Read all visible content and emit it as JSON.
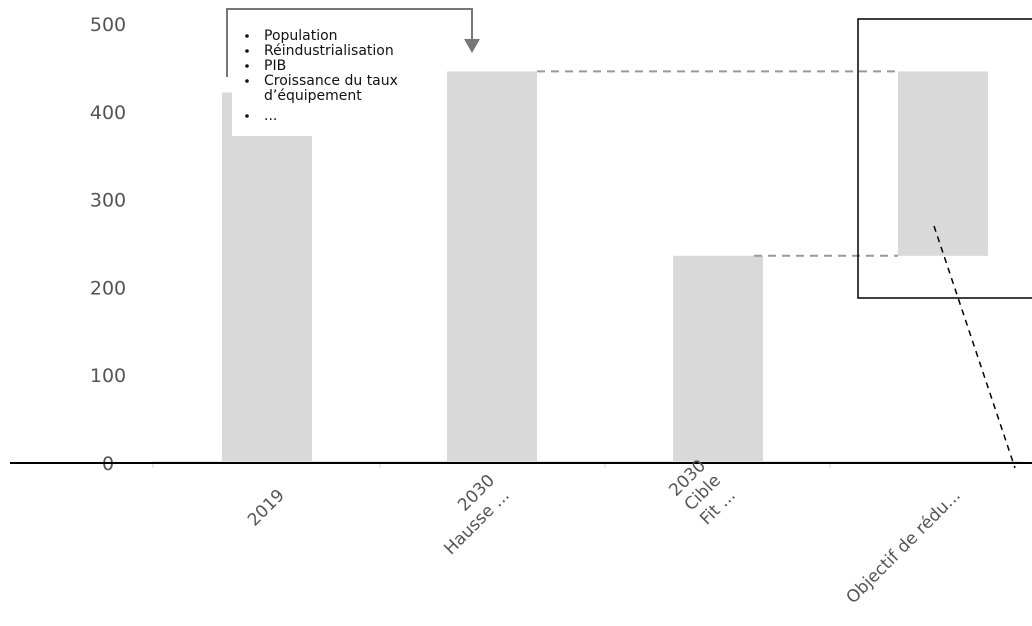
{
  "chart_data": {
    "type": "bar",
    "categories": [
      [
        "2019"
      ],
      [
        "2030",
        "Hausse ..."
      ],
      [
        "2030",
        "Cible",
        "Fit ..."
      ],
      [
        "Objectif de rédu..."
      ]
    ],
    "series": [
      {
        "values": [
          422,
          446,
          236,
          210
        ],
        "bases": [
          0,
          0,
          0,
          236
        ]
      }
    ],
    "yticks": [
      "0",
      "100",
      "200",
      "300",
      "400",
      "500"
    ],
    "ylim": [
      0,
      500
    ],
    "grid": false,
    "annotation_bullets": [
      "Population",
      "Réindustrialisation",
      "PIB",
      "Croissance du taux",
      "d’équipement",
      "..."
    ],
    "bar_color": "#d9d9d9",
    "arrow_color": "#777777",
    "dashed_color": "#999999"
  }
}
